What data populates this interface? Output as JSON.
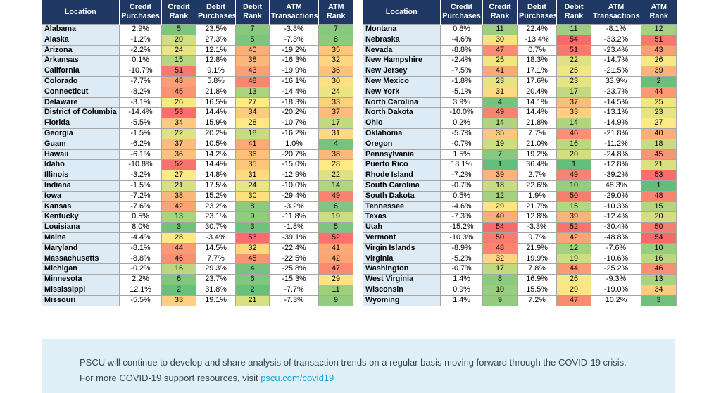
{
  "columns": [
    "Location",
    "Credit Purchases",
    "Credit Rank",
    "Debit Purchases",
    "Debit Rank",
    "ATM Transactions",
    "ATM Rank"
  ],
  "left_rows": [
    [
      "Alabama",
      "2.9%",
      5,
      "23.5%",
      7,
      "-3.8%",
      7
    ],
    [
      "Alaska",
      "-1.2%",
      20,
      "27.3%",
      5,
      "-7.3%",
      8
    ],
    [
      "Arizona",
      "-2.2%",
      24,
      "12.1%",
      40,
      "-19.2%",
      35
    ],
    [
      "Arkansas",
      "0.1%",
      15,
      "12.8%",
      38,
      "-16.3%",
      32
    ],
    [
      "California",
      "-10.7%",
      51,
      "9.1%",
      43,
      "-19.9%",
      36
    ],
    [
      "Colorado",
      "-7.7%",
      43,
      "5.8%",
      48,
      "-16.1%",
      30
    ],
    [
      "Connecticut",
      "-8.2%",
      45,
      "21.8%",
      13,
      "-14.4%",
      24
    ],
    [
      "Delaware",
      "-3.1%",
      26,
      "16.5%",
      27,
      "-18.3%",
      33
    ],
    [
      "District of Columbia",
      "-14.4%",
      53,
      "14.4%",
      34,
      "-20.2%",
      37
    ],
    [
      "Florida",
      "-5.5%",
      34,
      "15.9%",
      28,
      "-10.7%",
      17
    ],
    [
      "Georgia",
      "-1.5%",
      22,
      "20.2%",
      18,
      "-16.2%",
      31
    ],
    [
      "Guam",
      "-6.2%",
      37,
      "10.5%",
      41,
      "1.0%",
      4
    ],
    [
      "Hawaii",
      "-6.1%",
      36,
      "14.2%",
      36,
      "-20.7%",
      38
    ],
    [
      "Idaho",
      "-10.8%",
      52,
      "14.4%",
      35,
      "-15.0%",
      28
    ],
    [
      "Illinois",
      "-3.2%",
      27,
      "14.8%",
      31,
      "-12.9%",
      22
    ],
    [
      "Indiana",
      "-1.5%",
      21,
      "17.5%",
      24,
      "-10.0%",
      14
    ],
    [
      "Iowa",
      "-7.2%",
      38,
      "15.2%",
      30,
      "-29.4%",
      49
    ],
    [
      "Kansas",
      "-7.6%",
      42,
      "23.2%",
      8,
      "-3.2%",
      6
    ],
    [
      "Kentucky",
      "0.5%",
      13,
      "23.1%",
      9,
      "-11.8%",
      19
    ],
    [
      "Louisiana",
      "8.0%",
      3,
      "30.7%",
      3,
      "-1.8%",
      5
    ],
    [
      "Maine",
      "-4.4%",
      28,
      "-3.4%",
      53,
      "-39.1%",
      52
    ],
    [
      "Maryland",
      "-8.1%",
      44,
      "14.5%",
      32,
      "-22.4%",
      41
    ],
    [
      "Massachusetts",
      "-8.8%",
      46,
      "7.7%",
      45,
      "-22.5%",
      42
    ],
    [
      "Michigan",
      "-0.2%",
      16,
      "29.3%",
      4,
      "-25.8%",
      47
    ],
    [
      "Minnesota",
      "2.2%",
      6,
      "23.7%",
      6,
      "-15.3%",
      29
    ],
    [
      "Mississippi",
      "12.1%",
      2,
      "31.8%",
      2,
      "-7.7%",
      11
    ],
    [
      "Missouri",
      "-5.5%",
      33,
      "19.1%",
      21,
      "-7.3%",
      9
    ]
  ],
  "right_rows": [
    [
      "Montana",
      "0.8%",
      11,
      "22.4%",
      11,
      "-8.1%",
      12
    ],
    [
      "Nebraska",
      "-4.6%",
      30,
      "-13.4%",
      54,
      "-33.2%",
      51
    ],
    [
      "Nevada",
      "-8.8%",
      47,
      "0.7%",
      51,
      "-23.4%",
      43
    ],
    [
      "New Hampshire",
      "-2.4%",
      25,
      "18.3%",
      22,
      "-14.7%",
      26
    ],
    [
      "New Jersey",
      "-7.5%",
      41,
      "17.1%",
      25,
      "-21.5%",
      39
    ],
    [
      "New Mexico",
      "-1.8%",
      23,
      "17.6%",
      23,
      "33.9%",
      2
    ],
    [
      "New York",
      "-5.1%",
      31,
      "20.4%",
      17,
      "-23.7%",
      44
    ],
    [
      "North Carolina",
      "3.9%",
      4,
      "14.1%",
      37,
      "-14.5%",
      25
    ],
    [
      "North Dakota",
      "-10.0%",
      49,
      "14.4%",
      33,
      "-13.1%",
      23
    ],
    [
      "Ohio",
      "0.2%",
      14,
      "21.8%",
      14,
      "-14.9%",
      27
    ],
    [
      "Oklahoma",
      "-5.7%",
      35,
      "7.7%",
      46,
      "-21.8%",
      40
    ],
    [
      "Oregon",
      "-0.7%",
      19,
      "21.0%",
      16,
      "-11.2%",
      18
    ],
    [
      "Pennsylvania",
      "1.5%",
      7,
      "19.2%",
      20,
      "-24.8%",
      45
    ],
    [
      "Puerto Rico",
      "18.1%",
      1,
      "36.4%",
      1,
      "-12.8%",
      21
    ],
    [
      "Rhode Island",
      "-7.2%",
      39,
      "2.7%",
      49,
      "-39.2%",
      53
    ],
    [
      "South Carolina",
      "-0.7%",
      18,
      "22.6%",
      10,
      "48.3%",
      1
    ],
    [
      "South Dakota",
      "0.5%",
      12,
      "1.9%",
      50,
      "-29.0%",
      48
    ],
    [
      "Tennessee",
      "-4.6%",
      29,
      "21.7%",
      15,
      "-10.3%",
      15
    ],
    [
      "Texas",
      "-7.3%",
      40,
      "12.8%",
      39,
      "-12.4%",
      20
    ],
    [
      "Utah",
      "-15.2%",
      54,
      "-3.3%",
      52,
      "-30.4%",
      50
    ],
    [
      "Vermont",
      "-10.3%",
      50,
      "9.7%",
      42,
      "-48.8%",
      54
    ],
    [
      "Virgin Islands",
      "-8.9%",
      48,
      "21.9%",
      12,
      "-7.6%",
      10
    ],
    [
      "Virginia",
      "-5.2%",
      32,
      "19.9%",
      19,
      "-10.6%",
      16
    ],
    [
      "Washington",
      "-0.7%",
      17,
      "7.8%",
      44,
      "-25.2%",
      46
    ],
    [
      "West Virginia",
      "1.4%",
      8,
      "16.9%",
      26,
      "-9.3%",
      13
    ],
    [
      "Wisconsin",
      "0.9%",
      10,
      "15.5%",
      29,
      "-19.0%",
      34
    ],
    [
      "Wyoming",
      "1.4%",
      9,
      "7.2%",
      47,
      "10.2%",
      3
    ]
  ],
  "rank_max": 54,
  "rank_colors": {
    "best": "#63be7b",
    "mid": "#ffeb84",
    "worst": "#f8696b"
  },
  "header_color": "#1f3864",
  "location_fill": "#ddebf7",
  "footer": {
    "line1": "PSCU will continue to develop and share analysis of transaction trends on a regular basis moving forward through the COVID-19 crisis.",
    "line2_prefix": "For more COVID-19 support resources, visit ",
    "link_text": "pscu.com/covid19"
  }
}
